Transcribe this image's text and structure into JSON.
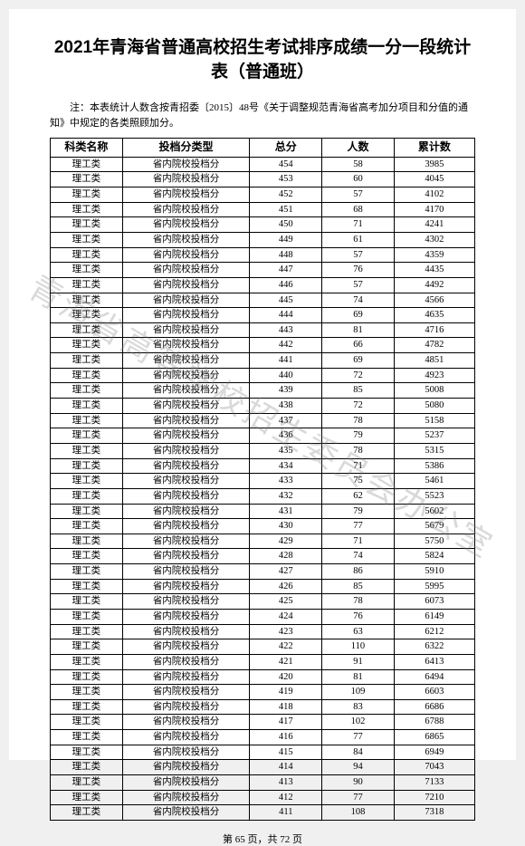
{
  "document": {
    "title": "2021年青海省普通高校招生考试排序成绩一分一段统计表（普通班）",
    "note": "注：本表统计人数含按青招委〔2015〕48号《关于调整规范青海省高考加分项目和分值的通知》中规定的各类照顾加分。",
    "watermark": "青海省高等学校招生委员会办公室",
    "footer_prefix": "第 ",
    "footer_page": "65",
    "footer_mid": " 页，共 ",
    "footer_total": "72",
    "footer_suffix": " 页"
  },
  "table": {
    "headers": {
      "category": "科类名称",
      "type": "投档分类型",
      "score": "总分",
      "count": "人数",
      "cumulative": "累计数"
    },
    "common": {
      "category": "理工类",
      "type": "省内院校投档分"
    },
    "rows": [
      {
        "score": "454",
        "count": "58",
        "cum": "3985"
      },
      {
        "score": "453",
        "count": "60",
        "cum": "4045"
      },
      {
        "score": "452",
        "count": "57",
        "cum": "4102"
      },
      {
        "score": "451",
        "count": "68",
        "cum": "4170"
      },
      {
        "score": "450",
        "count": "71",
        "cum": "4241"
      },
      {
        "score": "449",
        "count": "61",
        "cum": "4302"
      },
      {
        "score": "448",
        "count": "57",
        "cum": "4359"
      },
      {
        "score": "447",
        "count": "76",
        "cum": "4435"
      },
      {
        "score": "446",
        "count": "57",
        "cum": "4492"
      },
      {
        "score": "445",
        "count": "74",
        "cum": "4566"
      },
      {
        "score": "444",
        "count": "69",
        "cum": "4635"
      },
      {
        "score": "443",
        "count": "81",
        "cum": "4716"
      },
      {
        "score": "442",
        "count": "66",
        "cum": "4782"
      },
      {
        "score": "441",
        "count": "69",
        "cum": "4851"
      },
      {
        "score": "440",
        "count": "72",
        "cum": "4923"
      },
      {
        "score": "439",
        "count": "85",
        "cum": "5008"
      },
      {
        "score": "438",
        "count": "72",
        "cum": "5080"
      },
      {
        "score": "437",
        "count": "78",
        "cum": "5158"
      },
      {
        "score": "436",
        "count": "79",
        "cum": "5237"
      },
      {
        "score": "435",
        "count": "78",
        "cum": "5315"
      },
      {
        "score": "434",
        "count": "71",
        "cum": "5386"
      },
      {
        "score": "433",
        "count": "75",
        "cum": "5461"
      },
      {
        "score": "432",
        "count": "62",
        "cum": "5523"
      },
      {
        "score": "431",
        "count": "79",
        "cum": "5602"
      },
      {
        "score": "430",
        "count": "77",
        "cum": "5679"
      },
      {
        "score": "429",
        "count": "71",
        "cum": "5750"
      },
      {
        "score": "428",
        "count": "74",
        "cum": "5824"
      },
      {
        "score": "427",
        "count": "86",
        "cum": "5910"
      },
      {
        "score": "426",
        "count": "85",
        "cum": "5995"
      },
      {
        "score": "425",
        "count": "78",
        "cum": "6073"
      },
      {
        "score": "424",
        "count": "76",
        "cum": "6149"
      },
      {
        "score": "423",
        "count": "63",
        "cum": "6212"
      },
      {
        "score": "422",
        "count": "110",
        "cum": "6322"
      },
      {
        "score": "421",
        "count": "91",
        "cum": "6413"
      },
      {
        "score": "420",
        "count": "81",
        "cum": "6494"
      },
      {
        "score": "419",
        "count": "109",
        "cum": "6603"
      },
      {
        "score": "418",
        "count": "83",
        "cum": "6686"
      },
      {
        "score": "417",
        "count": "102",
        "cum": "6788"
      },
      {
        "score": "416",
        "count": "77",
        "cum": "6865"
      },
      {
        "score": "415",
        "count": "84",
        "cum": "6949"
      },
      {
        "score": "414",
        "count": "94",
        "cum": "7043"
      },
      {
        "score": "413",
        "count": "90",
        "cum": "7133"
      },
      {
        "score": "412",
        "count": "77",
        "cum": "7210"
      },
      {
        "score": "411",
        "count": "108",
        "cum": "7318"
      }
    ]
  },
  "style": {
    "background": "#ffffff",
    "text_color": "#000000",
    "border_color": "#000000",
    "watermark_color": "rgba(120,120,120,0.28)",
    "title_fontsize": 19,
    "body_fontsize": 10.5,
    "note_fontsize": 11,
    "footer_fontsize": 11,
    "watermark_rotate_deg": 30
  }
}
